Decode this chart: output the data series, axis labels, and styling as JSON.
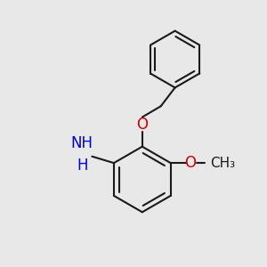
{
  "background_color": "#e8e8e8",
  "bond_color": "#1a1a1a",
  "bond_width": 1.5,
  "N_color": "#0000cd",
  "O_color": "#cc0000",
  "font_size": 12,
  "figsize": [
    3.0,
    3.0
  ],
  "dpi": 100,
  "xlim": [
    -1.1,
    1.1
  ],
  "ylim": [
    -1.2,
    1.2
  ]
}
